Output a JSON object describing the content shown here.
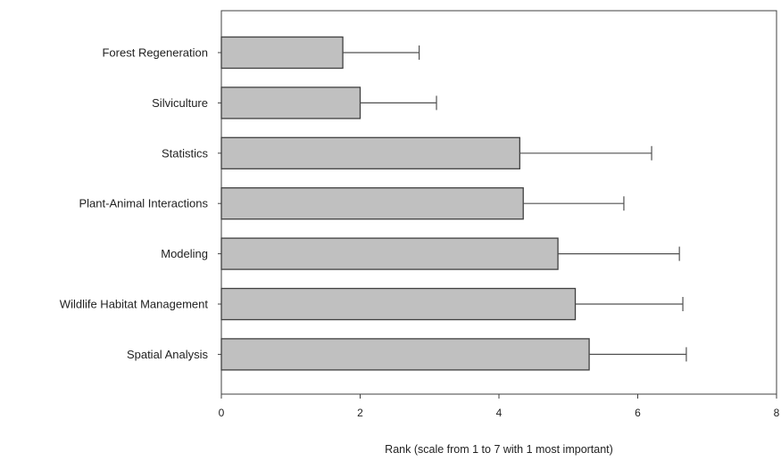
{
  "chart_data": {
    "type": "bar",
    "orientation": "horizontal",
    "title": "",
    "xlabel": "Rank (scale from 1 to 7 with 1 most important)",
    "ylabel": "",
    "xlim": [
      0,
      8
    ],
    "xticks": [
      "0",
      "2",
      "4",
      "6",
      "8"
    ],
    "grid": false,
    "legend": "none",
    "categories": [
      "Forest Regeneration",
      "Silviculture",
      "Statistics",
      "Plant-Animal Interactions",
      "Modeling",
      "Wildlife Habitat Management",
      "Spatial Analysis"
    ],
    "values": [
      1.75,
      2.0,
      4.3,
      4.35,
      4.85,
      5.1,
      5.3
    ],
    "error_upper": [
      2.85,
      3.1,
      6.2,
      5.8,
      6.6,
      6.65,
      6.7
    ],
    "colors": {
      "bar_fill": "#c0c0c0",
      "bar_stroke": "#404040",
      "axis": "#404040",
      "error_bar": "#505050"
    }
  }
}
